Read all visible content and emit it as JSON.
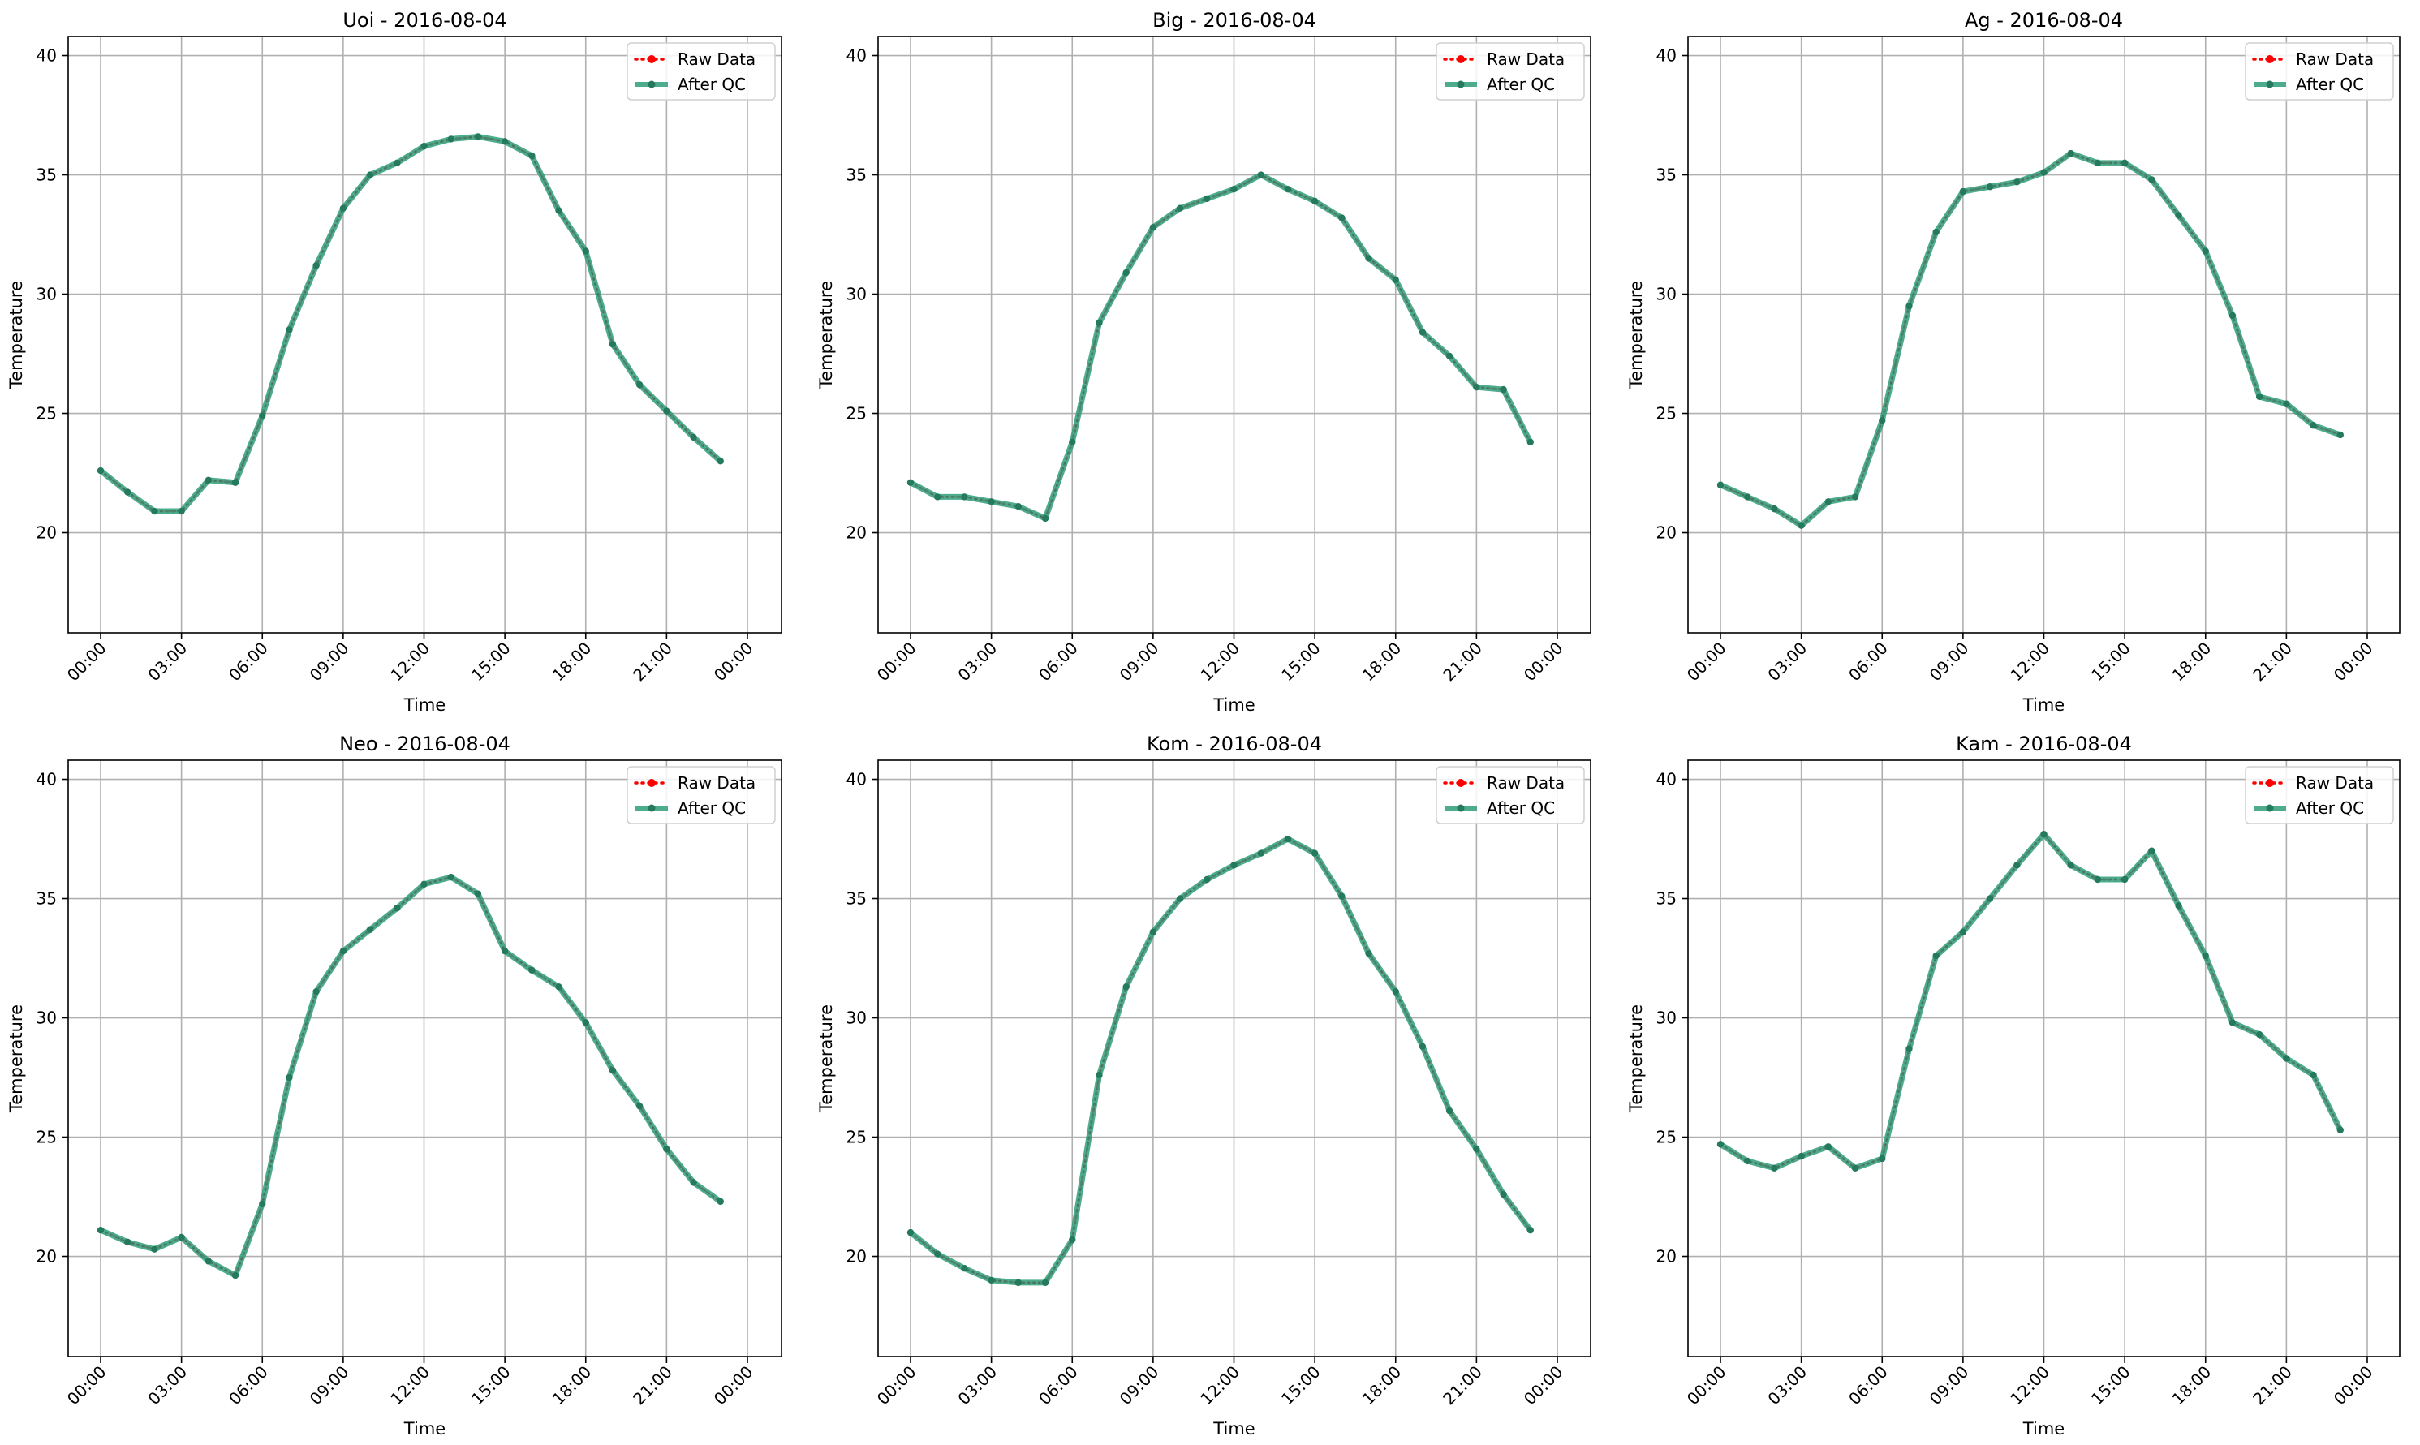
{
  "figure": {
    "colors": {
      "raw": "#ff0000",
      "qc": "#2e9e7a",
      "qc_marker": "#257a5e",
      "grid": "#b0b0b0"
    }
  },
  "chart_data": [
    {
      "type": "line",
      "title": "Uoi - 2016-08-04",
      "xlabel": "Time",
      "ylabel": "Temperature",
      "x_ticks": [
        "00:00",
        "03:00",
        "06:00",
        "09:00",
        "12:00",
        "15:00",
        "18:00",
        "21:00",
        "00:00"
      ],
      "y_ticks": [
        20,
        25,
        30,
        35,
        40
      ],
      "ylim": [
        15.8,
        40.8
      ],
      "legend": "top-right",
      "grid": true,
      "x_hours": [
        0,
        1,
        2,
        3,
        4,
        5,
        6,
        7,
        8,
        9,
        10,
        11,
        12,
        13,
        14,
        15,
        16,
        17,
        18,
        19,
        20,
        21,
        22,
        23
      ],
      "series": [
        {
          "name": "Raw Data",
          "values": [
            22.6,
            21.7,
            20.9,
            20.9,
            22.2,
            22.1,
            24.9,
            28.5,
            31.2,
            33.6,
            35.0,
            35.5,
            36.2,
            36.5,
            36.6,
            36.4,
            35.8,
            33.5,
            31.8,
            27.9,
            26.2,
            25.1,
            24.0,
            23.0
          ]
        },
        {
          "name": "After QC",
          "values": [
            22.6,
            21.7,
            20.9,
            20.9,
            22.2,
            22.1,
            24.9,
            28.5,
            31.2,
            33.6,
            35.0,
            35.5,
            36.2,
            36.5,
            36.6,
            36.4,
            35.8,
            33.5,
            31.8,
            27.9,
            26.2,
            25.1,
            24.0,
            23.0
          ]
        }
      ]
    },
    {
      "type": "line",
      "title": "Big - 2016-08-04",
      "xlabel": "Time",
      "ylabel": "Temperature",
      "x_ticks": [
        "00:00",
        "03:00",
        "06:00",
        "09:00",
        "12:00",
        "15:00",
        "18:00",
        "21:00",
        "00:00"
      ],
      "y_ticks": [
        20,
        25,
        30,
        35,
        40
      ],
      "ylim": [
        15.8,
        40.8
      ],
      "legend": "top-right",
      "grid": true,
      "x_hours": [
        0,
        1,
        2,
        3,
        4,
        5,
        6,
        7,
        8,
        9,
        10,
        11,
        12,
        13,
        14,
        15,
        16,
        17,
        18,
        19,
        20,
        21,
        22,
        23
      ],
      "series": [
        {
          "name": "Raw Data",
          "values": [
            22.1,
            21.5,
            21.5,
            21.3,
            21.1,
            20.6,
            23.8,
            28.8,
            30.9,
            32.8,
            33.6,
            34.0,
            34.4,
            35.0,
            34.4,
            33.9,
            33.2,
            31.5,
            30.6,
            28.4,
            27.4,
            26.1,
            26.0,
            23.8
          ]
        },
        {
          "name": "After QC",
          "values": [
            22.1,
            21.5,
            21.5,
            21.3,
            21.1,
            20.6,
            23.8,
            28.8,
            30.9,
            32.8,
            33.6,
            34.0,
            34.4,
            35.0,
            34.4,
            33.9,
            33.2,
            31.5,
            30.6,
            28.4,
            27.4,
            26.1,
            26.0,
            23.8
          ]
        }
      ]
    },
    {
      "type": "line",
      "title": "Ag - 2016-08-04",
      "xlabel": "Time",
      "ylabel": "Temperature",
      "x_ticks": [
        "00:00",
        "03:00",
        "06:00",
        "09:00",
        "12:00",
        "15:00",
        "18:00",
        "21:00",
        "00:00"
      ],
      "y_ticks": [
        20,
        25,
        30,
        35,
        40
      ],
      "ylim": [
        15.8,
        40.8
      ],
      "legend": "top-right",
      "grid": true,
      "x_hours": [
        0,
        1,
        2,
        3,
        4,
        5,
        6,
        7,
        8,
        9,
        10,
        11,
        12,
        13,
        14,
        15,
        16,
        17,
        18,
        19,
        20,
        21,
        22,
        23
      ],
      "series": [
        {
          "name": "Raw Data",
          "values": [
            22.0,
            21.5,
            21.0,
            20.3,
            21.3,
            21.5,
            24.7,
            29.5,
            32.6,
            34.3,
            34.5,
            34.7,
            35.1,
            35.9,
            35.5,
            35.5,
            34.8,
            33.3,
            31.8,
            29.1,
            25.7,
            25.4,
            24.5,
            24.1
          ]
        },
        {
          "name": "After QC",
          "values": [
            22.0,
            21.5,
            21.0,
            20.3,
            21.3,
            21.5,
            24.7,
            29.5,
            32.6,
            34.3,
            34.5,
            34.7,
            35.1,
            35.9,
            35.5,
            35.5,
            34.8,
            33.3,
            31.8,
            29.1,
            25.7,
            25.4,
            24.5,
            24.1
          ]
        }
      ]
    },
    {
      "type": "line",
      "title": "Neo - 2016-08-04",
      "xlabel": "Time",
      "ylabel": "Temperature",
      "x_ticks": [
        "00:00",
        "03:00",
        "06:00",
        "09:00",
        "12:00",
        "15:00",
        "18:00",
        "21:00",
        "00:00"
      ],
      "y_ticks": [
        20,
        25,
        30,
        35,
        40
      ],
      "ylim": [
        15.8,
        40.8
      ],
      "legend": "top-right",
      "grid": true,
      "x_hours": [
        0,
        1,
        2,
        3,
        4,
        5,
        6,
        7,
        8,
        9,
        10,
        11,
        12,
        13,
        14,
        15,
        16,
        17,
        18,
        19,
        20,
        21,
        22,
        23
      ],
      "series": [
        {
          "name": "Raw Data",
          "values": [
            21.1,
            20.6,
            20.3,
            20.8,
            19.8,
            19.2,
            22.2,
            27.5,
            31.1,
            32.8,
            33.7,
            34.6,
            35.6,
            35.9,
            35.2,
            32.8,
            32.0,
            31.3,
            29.8,
            27.8,
            26.3,
            24.5,
            23.1,
            22.3
          ]
        },
        {
          "name": "After QC",
          "values": [
            21.1,
            20.6,
            20.3,
            20.8,
            19.8,
            19.2,
            22.2,
            27.5,
            31.1,
            32.8,
            33.7,
            34.6,
            35.6,
            35.9,
            35.2,
            32.8,
            32.0,
            31.3,
            29.8,
            27.8,
            26.3,
            24.5,
            23.1,
            22.3
          ]
        }
      ]
    },
    {
      "type": "line",
      "title": "Kom - 2016-08-04",
      "xlabel": "Time",
      "ylabel": "Temperature",
      "x_ticks": [
        "00:00",
        "03:00",
        "06:00",
        "09:00",
        "12:00",
        "15:00",
        "18:00",
        "21:00",
        "00:00"
      ],
      "y_ticks": [
        20,
        25,
        30,
        35,
        40
      ],
      "ylim": [
        15.8,
        40.8
      ],
      "legend": "top-right",
      "grid": true,
      "x_hours": [
        0,
        1,
        2,
        3,
        4,
        5,
        6,
        7,
        8,
        9,
        10,
        11,
        12,
        13,
        14,
        15,
        16,
        17,
        18,
        19,
        20,
        21,
        22,
        23
      ],
      "series": [
        {
          "name": "Raw Data",
          "values": [
            21.0,
            20.1,
            19.5,
            19.0,
            18.9,
            18.9,
            20.7,
            27.6,
            31.3,
            33.6,
            35.0,
            35.8,
            36.4,
            36.9,
            37.5,
            36.9,
            35.1,
            32.7,
            31.1,
            28.8,
            26.1,
            24.5,
            22.6,
            21.1
          ]
        },
        {
          "name": "After QC",
          "values": [
            21.0,
            20.1,
            19.5,
            19.0,
            18.9,
            18.9,
            20.7,
            27.6,
            31.3,
            33.6,
            35.0,
            35.8,
            36.4,
            36.9,
            37.5,
            36.9,
            35.1,
            32.7,
            31.1,
            28.8,
            26.1,
            24.5,
            22.6,
            21.1
          ]
        }
      ]
    },
    {
      "type": "line",
      "title": "Kam - 2016-08-04",
      "xlabel": "Time",
      "ylabel": "Temperature",
      "x_ticks": [
        "00:00",
        "03:00",
        "06:00",
        "09:00",
        "12:00",
        "15:00",
        "18:00",
        "21:00",
        "00:00"
      ],
      "y_ticks": [
        20,
        25,
        30,
        35,
        40
      ],
      "ylim": [
        15.8,
        40.8
      ],
      "legend": "top-right",
      "grid": true,
      "x_hours": [
        0,
        1,
        2,
        3,
        4,
        5,
        6,
        7,
        8,
        9,
        10,
        11,
        12,
        13,
        14,
        15,
        16,
        17,
        18,
        19,
        20,
        21,
        22,
        23
      ],
      "series": [
        {
          "name": "Raw Data",
          "values": [
            24.7,
            24.0,
            23.7,
            24.2,
            24.6,
            23.7,
            24.1,
            28.7,
            32.6,
            33.6,
            35.0,
            36.4,
            37.7,
            36.4,
            35.8,
            35.8,
            37.0,
            34.7,
            32.6,
            29.8,
            29.3,
            28.3,
            27.6,
            25.3
          ]
        },
        {
          "name": "After QC",
          "values": [
            24.7,
            24.0,
            23.7,
            24.2,
            24.6,
            23.7,
            24.1,
            28.7,
            32.6,
            33.6,
            35.0,
            36.4,
            37.7,
            36.4,
            35.8,
            35.8,
            37.0,
            34.7,
            32.6,
            29.8,
            29.3,
            28.3,
            27.6,
            25.3
          ]
        }
      ]
    }
  ]
}
